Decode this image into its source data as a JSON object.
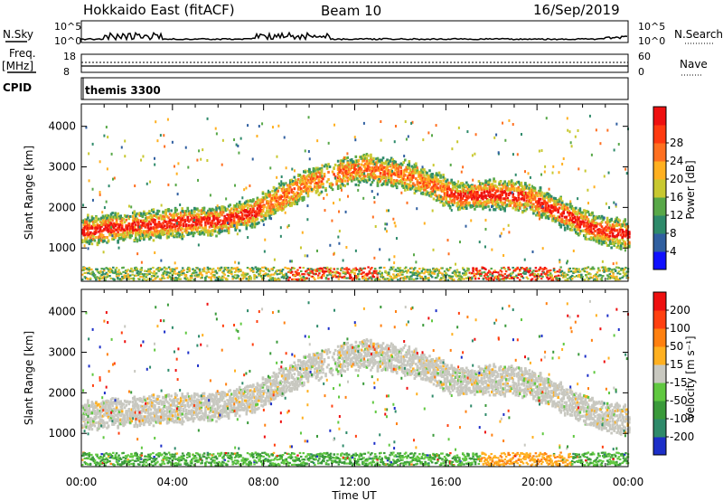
{
  "header": {
    "station": "Hokkaido East (fitACF)",
    "beam": "Beam 10",
    "date": "16/Sep/2019"
  },
  "strip": {
    "nsky_label": "N.Sky",
    "nsky_ticks": [
      "10^5",
      "10^0"
    ],
    "nsearch_label": "N.Search",
    "freq_label": "Freq.",
    "freq_unit": "[MHz]",
    "freq_ticks": [
      "18",
      "8"
    ],
    "nave_label": "Nave",
    "nave_ticks": [
      "60",
      "0"
    ],
    "cpid_label": "CPID",
    "cpid_value": "themis 3300"
  },
  "chart_data": [
    {
      "type": "heatmap",
      "panel": "power",
      "ylabel": "Slant Range [km]",
      "ylim": [
        180,
        4550
      ],
      "yticks": [
        "1000",
        "2000",
        "3000",
        "4000"
      ],
      "xlabel": "",
      "x_ticks": [
        "00:00",
        "04:00",
        "08:00",
        "12:00",
        "16:00",
        "20:00",
        "00:00"
      ],
      "colorbar": {
        "label": "Power [dB]",
        "ticks": [
          "4",
          "8",
          "12",
          "16",
          "20",
          "24",
          "28"
        ],
        "colors": [
          "#1010ff",
          "#305fa0",
          "#2e8a6a",
          "#58a848",
          "#c8c830",
          "#ffb020",
          "#ff7020",
          "#ff3a10",
          "#ee1010"
        ]
      },
      "main_echo_band_center_km": [
        {
          "time_h": 0.0,
          "km": 1450
        },
        {
          "time_h": 2.0,
          "km": 1550
        },
        {
          "time_h": 4.0,
          "km": 1650
        },
        {
          "time_h": 6.0,
          "km": 1700
        },
        {
          "time_h": 7.5,
          "km": 1900
        },
        {
          "time_h": 8.5,
          "km": 2200
        },
        {
          "time_h": 10.0,
          "km": 2650
        },
        {
          "time_h": 11.5,
          "km": 2900
        },
        {
          "time_h": 12.5,
          "km": 3000
        },
        {
          "time_h": 14.0,
          "km": 2850
        },
        {
          "time_h": 15.5,
          "km": 2550
        },
        {
          "time_h": 16.5,
          "km": 2300
        },
        {
          "time_h": 18.0,
          "km": 2350
        },
        {
          "time_h": 19.5,
          "km": 2300
        },
        {
          "time_h": 21.0,
          "km": 1900
        },
        {
          "time_h": 22.5,
          "km": 1500
        },
        {
          "time_h": 24.0,
          "km": 1350
        }
      ]
    },
    {
      "type": "heatmap",
      "panel": "velocity",
      "ylabel": "Slant Range [km]",
      "ylim": [
        180,
        4550
      ],
      "yticks": [
        "1000",
        "2000",
        "3000",
        "4000"
      ],
      "xlabel": "Time UT",
      "x_ticks": [
        "00:00",
        "04:00",
        "08:00",
        "12:00",
        "16:00",
        "20:00",
        "00:00"
      ],
      "colorbar": {
        "label": "Velocity [m s⁻¹]",
        "ticks": [
          "200",
          "100",
          "50",
          "15",
          "-15",
          "-50",
          "-100",
          "-200"
        ],
        "colors": [
          "#1c2fc8",
          "#2e8a6a",
          "#3a9a3a",
          "#60c840",
          "#c8c8c0",
          "#ffb020",
          "#ff8010",
          "#ff4010",
          "#ee1010"
        ]
      }
    }
  ]
}
